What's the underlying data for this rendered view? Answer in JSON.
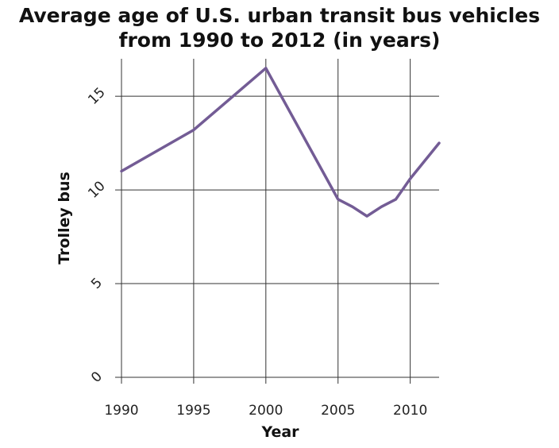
{
  "chart_data": {
    "type": "line",
    "title_lines": [
      "Average age of U.S. urban transit bus vehicles",
      "from 1990 to 2012 (in years)"
    ],
    "xlabel": "Year",
    "ylabel": "Trolley bus",
    "xlim": [
      1990,
      2012
    ],
    "ylim": [
      0,
      17
    ],
    "x_ticks": [
      1990,
      1995,
      2000,
      2005,
      2010
    ],
    "y_ticks": [
      0,
      5,
      10,
      15
    ],
    "grid": true,
    "line_color": "#735c95",
    "series": [
      {
        "x": [
          1990,
          1995,
          2000,
          2005,
          2006,
          2007,
          2008,
          2009,
          2010,
          2012
        ],
        "values": [
          11.0,
          13.2,
          16.5,
          9.5,
          9.1,
          8.6,
          9.1,
          9.5,
          10.6,
          12.5
        ]
      }
    ]
  }
}
